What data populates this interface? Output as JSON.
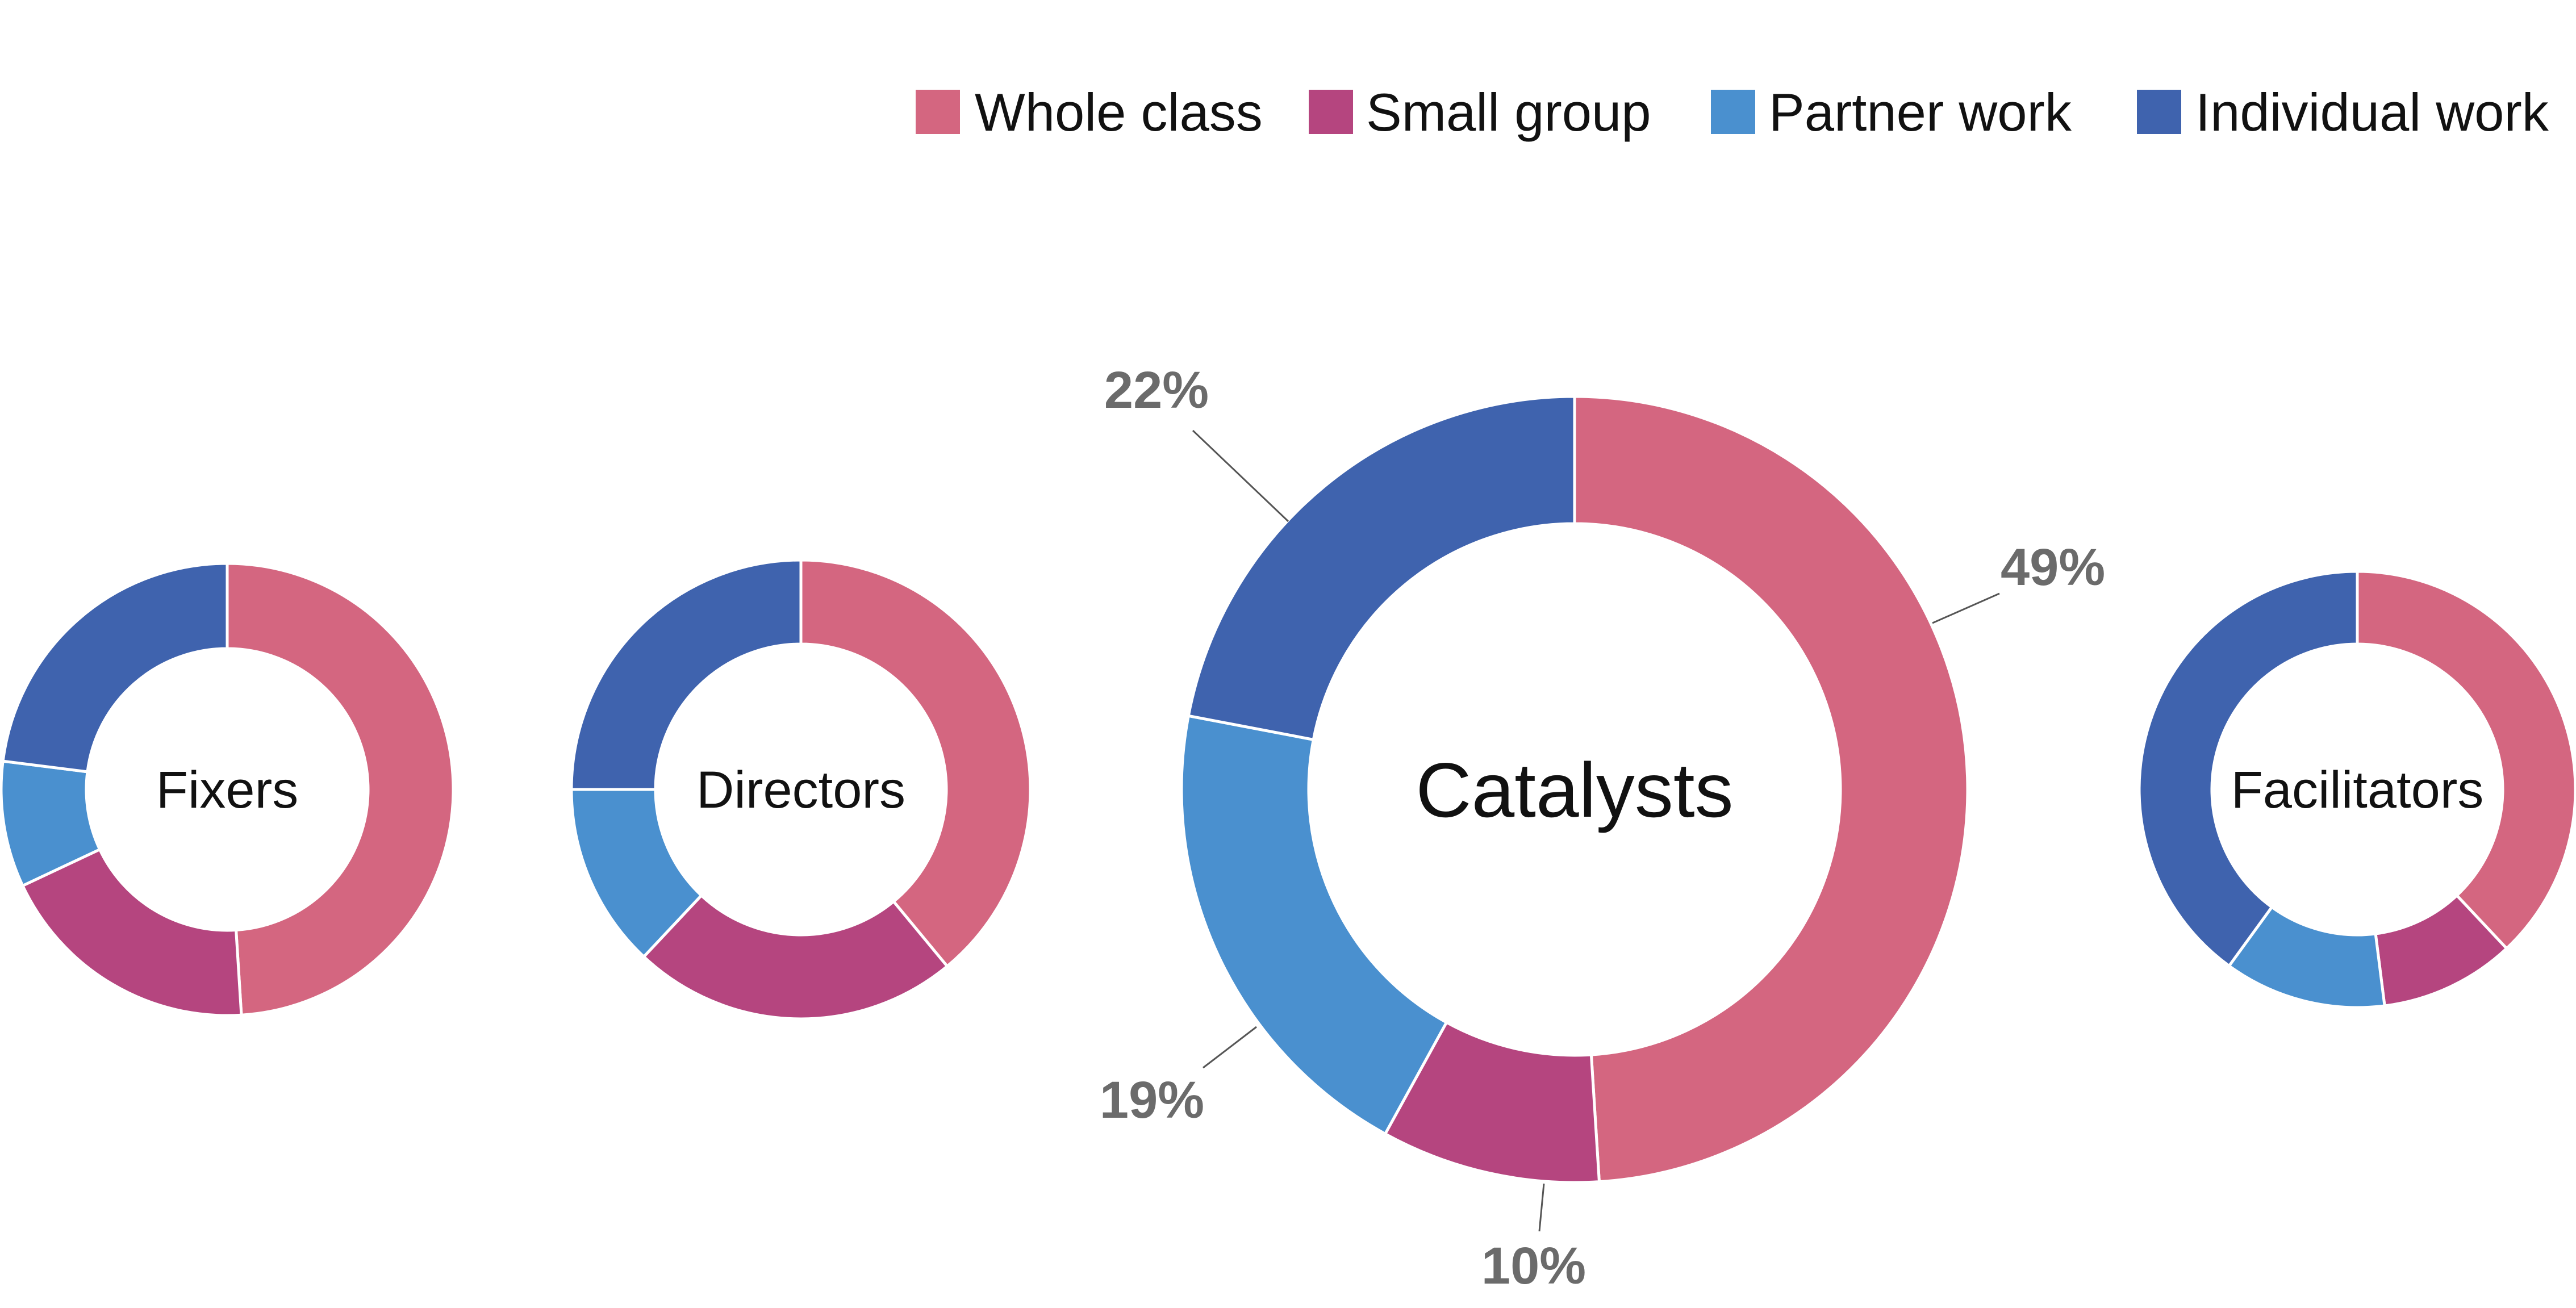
{
  "colors": {
    "whole_class": "#d46680",
    "small_group": "#b5457f",
    "partner_work": "#4a90cf",
    "individual_work": "#3f63ae",
    "leader_line": "#555555",
    "pct_text": "#6b6b6b"
  },
  "legend": [
    {
      "label": "Whole class",
      "color": "#d46680"
    },
    {
      "label": "Small group",
      "color": "#b5457f"
    },
    {
      "label": "Partner work",
      "color": "#4a90cf"
    },
    {
      "label": "Individual work",
      "color": "#3f63ae"
    }
  ],
  "chart_data": [
    {
      "type": "donut",
      "name": "Fixers",
      "series": [
        "Whole class",
        "Small group",
        "Partner work",
        "Individual work"
      ],
      "values": [
        49,
        19,
        9,
        23
      ],
      "labels_shown": false
    },
    {
      "type": "donut",
      "name": "Directors",
      "series": [
        "Whole class",
        "Small group",
        "Partner work",
        "Individual work"
      ],
      "values": [
        39,
        23,
        13,
        25
      ],
      "labels_shown": false
    },
    {
      "type": "donut",
      "name": "Catalysts",
      "series": [
        "Whole class",
        "Small group",
        "Partner work",
        "Individual work"
      ],
      "values": [
        49,
        10,
        19,
        22
      ],
      "value_labels": [
        "49%",
        "10%",
        "19%",
        "22%"
      ],
      "labels_shown": true
    },
    {
      "type": "donut",
      "name": "Facilitators",
      "series": [
        "Whole class",
        "Small group",
        "Partner work",
        "Individual work"
      ],
      "values": [
        38,
        10,
        12,
        40
      ],
      "labels_shown": false
    }
  ]
}
